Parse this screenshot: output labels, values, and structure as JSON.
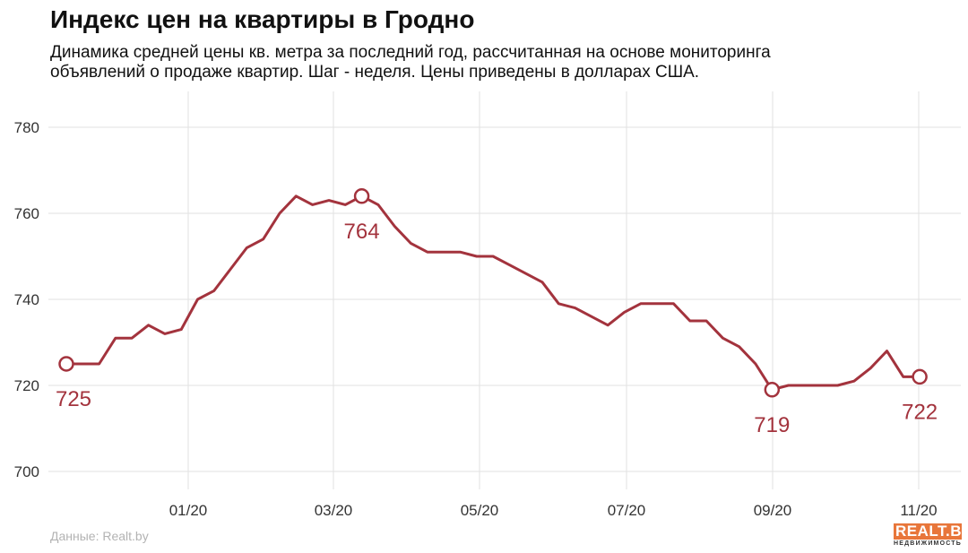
{
  "header": {
    "title": "Индекс цен на квартиры в Гродно",
    "subtitle_line1": "Динамика средней цены кв. метра за последний год, рассчитанная на основе мониторинга",
    "subtitle_line2": "объявлений о продаже квартир. Шаг - неделя. Цены приведены в долларах США."
  },
  "footer": {
    "source": "Данные: Realt.by",
    "logo_main": "REALT.BY",
    "logo_sub": "НЕДВИЖИМОСТЬ"
  },
  "chart_data": {
    "type": "line",
    "title": "Индекс цен на квартиры в Гродно",
    "xlabel": "",
    "ylabel": "",
    "ylim": [
      695,
      785
    ],
    "yticks": [
      700,
      720,
      740,
      760,
      780
    ],
    "x_tick_labels": [
      "01/20",
      "03/20",
      "05/20",
      "07/20",
      "09/20",
      "11/20"
    ],
    "grid": true,
    "line_color": "#a3333d",
    "series": [
      {
        "values": [
          725,
          725,
          725,
          731,
          731,
          734,
          732,
          733,
          740,
          742,
          747,
          752,
          754,
          760,
          764,
          762,
          763,
          762,
          764,
          762,
          757,
          753,
          751,
          751,
          751,
          750,
          750,
          748,
          746,
          744,
          739,
          738,
          736,
          734,
          737,
          739,
          739,
          739,
          735,
          735,
          731,
          729,
          725,
          719,
          720,
          720,
          720,
          720,
          721,
          724,
          728,
          722,
          722
        ]
      }
    ],
    "annotations": [
      {
        "index": 0,
        "label": "725"
      },
      {
        "index": 18,
        "label": "764"
      },
      {
        "index": 43,
        "label": "719"
      },
      {
        "index": 52,
        "label": "722"
      }
    ]
  }
}
